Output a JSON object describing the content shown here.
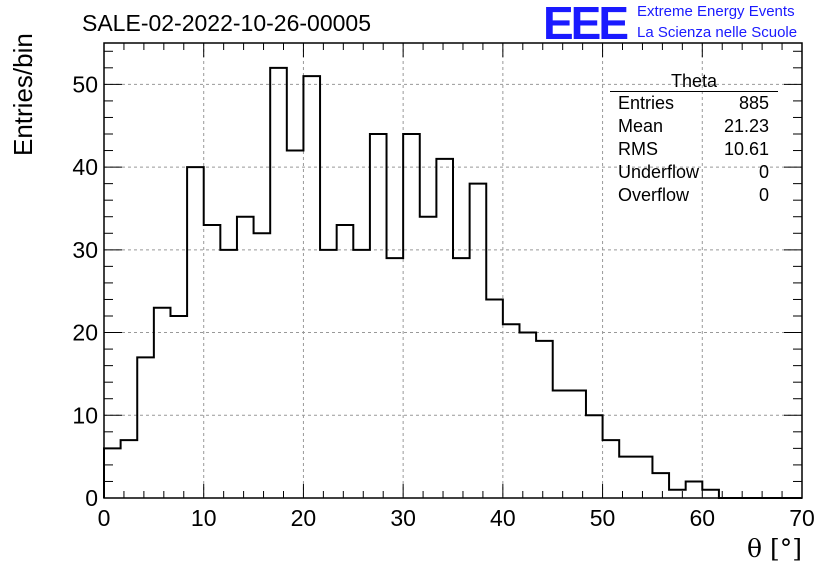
{
  "header": {
    "title": "SALE-02-2022-10-26-00005",
    "logo": "EEE",
    "logo_line1": "Extreme Energy Events",
    "logo_line2": "La Scienza nelle Scuole"
  },
  "stats_box": {
    "title": "Theta",
    "rows": [
      {
        "label": "Entries",
        "value": "885"
      },
      {
        "label": "Mean",
        "value": "21.23"
      },
      {
        "label": "RMS",
        "value": "10.61"
      },
      {
        "label": "Underflow",
        "value": "0"
      },
      {
        "label": "Overflow",
        "value": "0"
      }
    ]
  },
  "colors": {
    "line": "#000000",
    "logo": "#1a1aff",
    "grid": "#999999"
  },
  "chart_data": {
    "type": "bar",
    "style": "step-histogram",
    "title": "SALE-02-2022-10-26-00005",
    "xlabel": "θ [°]",
    "ylabel": "Entries/bin",
    "xlim": [
      0,
      70
    ],
    "ylim": [
      0,
      55
    ],
    "xticks": [
      0,
      10,
      20,
      30,
      40,
      50,
      60,
      70
    ],
    "yticks": [
      0,
      10,
      20,
      30,
      40,
      50
    ],
    "grid": true,
    "bin_width": 1.6667,
    "values": [
      6,
      7,
      17,
      23,
      22,
      40,
      33,
      30,
      34,
      32,
      52,
      42,
      51,
      30,
      33,
      30,
      44,
      29,
      44,
      34,
      41,
      29,
      38,
      24,
      21,
      20,
      19,
      13,
      13,
      10,
      7,
      5,
      5,
      3,
      1,
      2,
      1,
      0,
      0,
      0,
      0,
      0
    ]
  }
}
